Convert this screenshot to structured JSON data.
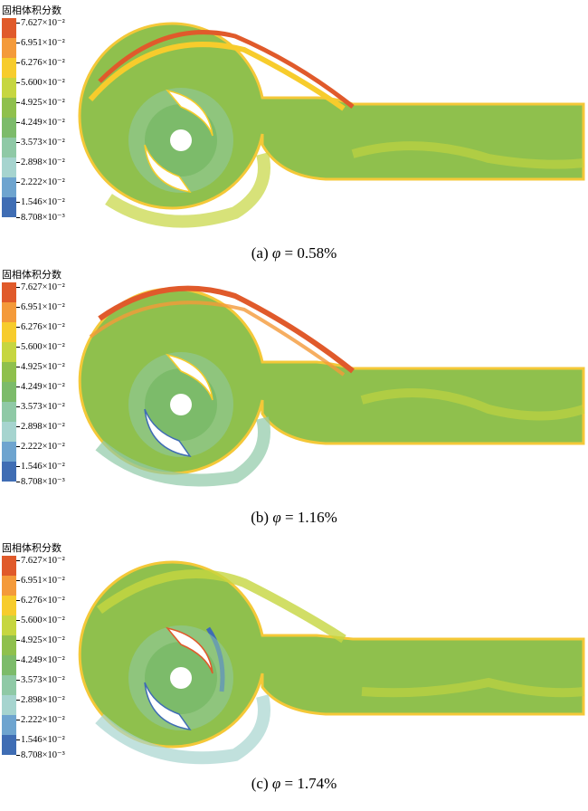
{
  "legend": {
    "title": "固相体积分数",
    "values": [
      "7.627×10⁻²",
      "6.951×10⁻²",
      "6.276×10⁻²",
      "5.600×10⁻²",
      "4.925×10⁻²",
      "4.249×10⁻²",
      "3.573×10⁻²",
      "2.898×10⁻²",
      "2.222×10⁻²",
      "1.546×10⁻²",
      "8.708×10⁻³"
    ],
    "colors": [
      "#e05a2b",
      "#f49a3a",
      "#f7cc2c",
      "#c6d640",
      "#8fc04d",
      "#7cbb6a",
      "#8fc9a6",
      "#a6d4cf",
      "#6ea4cf",
      "#3f6db4",
      "#263c8e"
    ]
  },
  "panels": [
    {
      "label": "(a)",
      "symbol": "φ",
      "value": "= 0.58%"
    },
    {
      "label": "(b)",
      "symbol": "φ",
      "value": "= 1.16%"
    },
    {
      "label": "(c)",
      "symbol": "φ",
      "value": "= 1.74%"
    }
  ]
}
